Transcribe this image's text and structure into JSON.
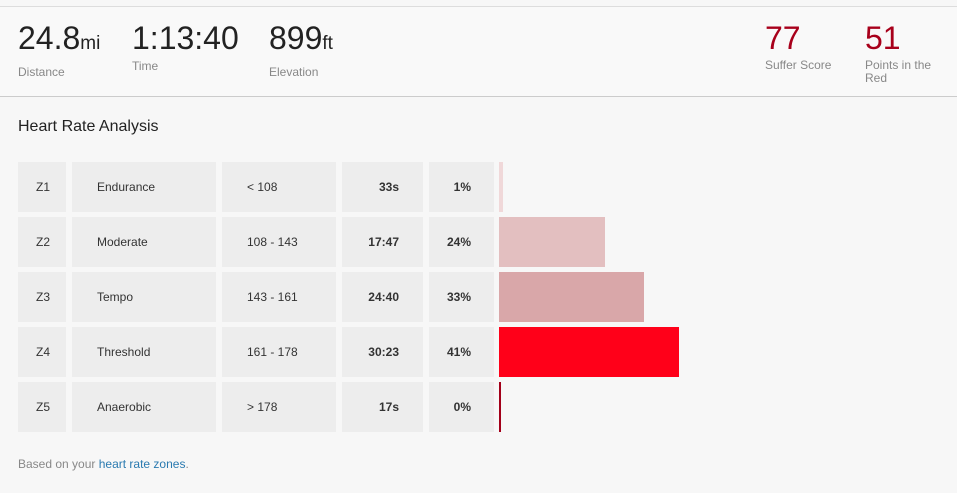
{
  "stats": [
    {
      "value": "24.8",
      "unit": "mi",
      "label": "Distance"
    },
    {
      "value": "1:13:40",
      "label": "Time"
    },
    {
      "value": "899",
      "unit": "ft",
      "label": "Elevation"
    }
  ],
  "scores": [
    {
      "value": "77",
      "label": "Suffer Score"
    },
    {
      "value": "51",
      "label": "Points in the Red"
    }
  ],
  "section_title": "Heart Rate Analysis",
  "zones": [
    {
      "zone": "Z1",
      "name": "Endurance",
      "range": "< 108",
      "time": "33s",
      "percent": {
        "value": 1,
        "label": "1%"
      },
      "color": "#f0d8d9"
    },
    {
      "zone": "Z2",
      "name": "Moderate",
      "range": "108 - 143",
      "time": "17:47",
      "percent": {
        "value": 24,
        "label": "24%"
      },
      "color": "#e3bfc0"
    },
    {
      "zone": "Z3",
      "name": "Tempo",
      "range": "143 - 161",
      "time": "24:40",
      "percent": {
        "value": 33,
        "label": "33%"
      },
      "color": "#d9a7a9"
    },
    {
      "zone": "Z4",
      "name": "Threshold",
      "range": "161 - 178",
      "time": "30:23",
      "percent": {
        "value": 41,
        "label": "41%"
      },
      "color": "#ff0019"
    },
    {
      "zone": "Z5",
      "name": "Anaerobic",
      "range": "> 178",
      "time": "17s",
      "percent": {
        "value": 0,
        "label": "0%"
      },
      "color": "#a3001a"
    }
  ],
  "footer": {
    "prefix": "Based on your ",
    "link": "heart rate zones",
    "suffix": "."
  }
}
